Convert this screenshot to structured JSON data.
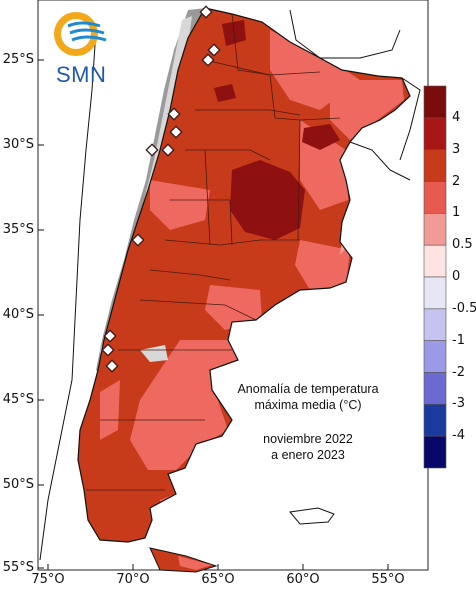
{
  "logo": {
    "name": "SMN",
    "text": "SMN"
  },
  "title": {
    "line1": "Anomalía de temperatura",
    "line2": "máxima media (°C)",
    "period1": "noviembre 2022",
    "period2": "a enero 2023"
  },
  "latitude_labels": [
    {
      "text": "25°S"
    },
    {
      "text": "30°S"
    },
    {
      "text": "35°S"
    },
    {
      "text": "40°S"
    },
    {
      "text": "45°S"
    },
    {
      "text": "50°S"
    },
    {
      "text": "55°S"
    }
  ],
  "longitude_labels": [
    {
      "text": "75°O"
    },
    {
      "text": "70°O"
    },
    {
      "text": "65°O"
    },
    {
      "text": "60°O"
    },
    {
      "text": "55°O"
    }
  ],
  "colorbar": {
    "title": "",
    "labels": [
      "4",
      "3",
      "2",
      "1",
      "0.5",
      "0",
      "-0.5",
      "-1",
      "-2",
      "-3",
      "-4"
    ],
    "colors": [
      "#7a0c0c",
      "#a81616",
      "#c73a1a",
      "#e85a50",
      "#f29a96",
      "#fde4e2",
      "#e6e6f6",
      "#c4c4ee",
      "#9a9ae8",
      "#6a6ad0",
      "#1a3aa0",
      "#06086a"
    ]
  },
  "legend_colors": {
    "very_hot": "#8e1010",
    "hot": "#c73a1a",
    "warm": "#ee6a60",
    "mild": "#f6a4a0",
    "terrain": "#9a9a9a",
    "terrain_light": "#d8d8d8"
  },
  "stations": [
    {
      "name": "station-1"
    },
    {
      "name": "station-2"
    },
    {
      "name": "station-3"
    },
    {
      "name": "station-4"
    },
    {
      "name": "station-5"
    },
    {
      "name": "station-6"
    },
    {
      "name": "station-7"
    },
    {
      "name": "station-8"
    },
    {
      "name": "station-9"
    },
    {
      "name": "station-10"
    },
    {
      "name": "station-11"
    }
  ]
}
